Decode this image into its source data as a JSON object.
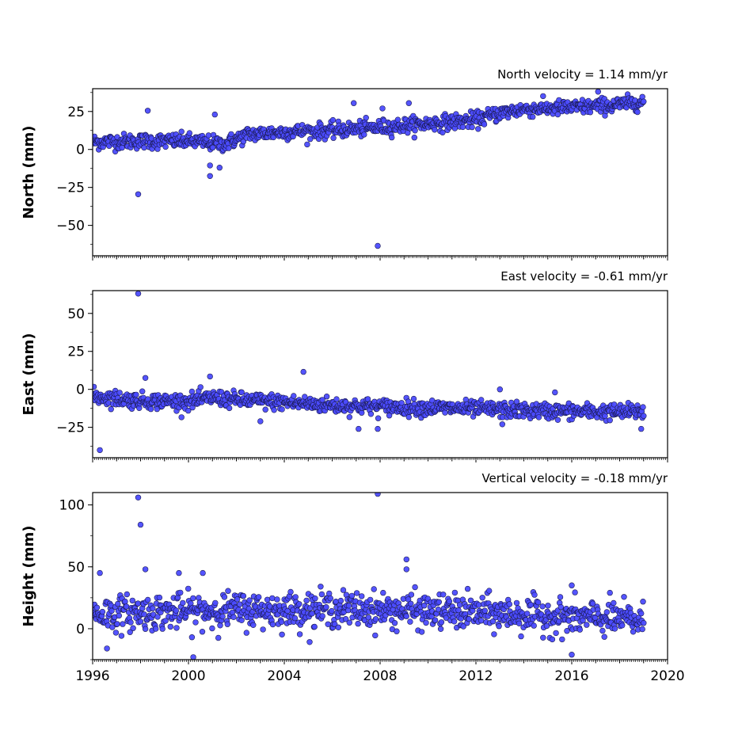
{
  "chart_data": [
    {
      "type": "scatter",
      "panel": "north",
      "ylabel": "North (mm)",
      "velocity_label": "North velocity = 1.14 mm/yr",
      "xlim": [
        1996,
        2020
      ],
      "ylim": [
        -70,
        40
      ],
      "yticks": [
        -50,
        -25,
        0,
        25
      ],
      "data_start": 1996.0,
      "data_end": 2019.0,
      "trend_points": [
        [
          1996.0,
          5.0
        ],
        [
          1998.0,
          5.5
        ],
        [
          2000.0,
          5.5
        ],
        [
          2001.5,
          3.5
        ],
        [
          2002.5,
          10.0
        ],
        [
          2004.0,
          11.5
        ],
        [
          2006.0,
          12.5
        ],
        [
          2008.0,
          14.5
        ],
        [
          2010.0,
          17.0
        ],
        [
          2012.0,
          19.5
        ],
        [
          2013.0,
          24.0
        ],
        [
          2014.0,
          26.5
        ],
        [
          2016.0,
          27.5
        ],
        [
          2018.0,
          29.5
        ],
        [
          2019.0,
          31.5
        ]
      ],
      "scatter_spread": 2.5,
      "outliers": [
        [
          1997.9,
          -29.5
        ],
        [
          1998.3,
          25.5
        ],
        [
          2000.9,
          -17.5
        ],
        [
          2000.9,
          -10.5
        ],
        [
          2001.1,
          23.0
        ],
        [
          2001.3,
          -12.0
        ],
        [
          2006.9,
          30.5
        ],
        [
          2007.9,
          -63.5
        ],
        [
          2008.1,
          27.0
        ],
        [
          2009.2,
          30.5
        ],
        [
          2017.1,
          38.0
        ]
      ]
    },
    {
      "type": "scatter",
      "panel": "east",
      "ylabel": "East (mm)",
      "velocity_label": "East velocity = -0.61 mm/yr",
      "xlim": [
        1996,
        2020
      ],
      "ylim": [
        -45,
        65
      ],
      "yticks": [
        -25,
        0,
        25,
        50
      ],
      "data_start": 1996.0,
      "data_end": 2019.0,
      "trend_points": [
        [
          1996.0,
          -4.5
        ],
        [
          1998.0,
          -7.5
        ],
        [
          2000.0,
          -8.0
        ],
        [
          2001.0,
          -5.5
        ],
        [
          2002.0,
          -7.0
        ],
        [
          2004.0,
          -8.5
        ],
        [
          2006.0,
          -10.5
        ],
        [
          2008.0,
          -11.5
        ],
        [
          2010.0,
          -12.0
        ],
        [
          2012.0,
          -13.0
        ],
        [
          2014.0,
          -14.0
        ],
        [
          2016.0,
          -14.5
        ],
        [
          2018.0,
          -15.0
        ],
        [
          2019.0,
          -14.5
        ]
      ],
      "scatter_spread": 2.6,
      "outliers": [
        [
          1996.3,
          -40.0
        ],
        [
          1997.9,
          63.0
        ],
        [
          1998.2,
          7.5
        ],
        [
          2000.9,
          8.5
        ],
        [
          2004.8,
          11.5
        ],
        [
          2003.0,
          -21.0
        ],
        [
          2007.1,
          -26.0
        ],
        [
          2007.9,
          -26.0
        ],
        [
          2013.1,
          -23.0
        ],
        [
          2013.0,
          0.0
        ],
        [
          2015.3,
          -2.0
        ],
        [
          2018.9,
          -26.0
        ]
      ]
    },
    {
      "type": "scatter",
      "panel": "height",
      "ylabel": "Height (mm)",
      "velocity_label": "Vertical velocity = -0.18 mm/yr",
      "xlim": [
        1996,
        2020
      ],
      "ylim": [
        -25,
        110
      ],
      "yticks": [
        0,
        50,
        100
      ],
      "xticks": [
        1996,
        2000,
        2004,
        2008,
        2012,
        2016,
        2020
      ],
      "data_start": 1996.0,
      "data_end": 2019.0,
      "trend_points": [
        [
          1996.0,
          12.0
        ],
        [
          1998.0,
          13.0
        ],
        [
          2000.0,
          14.0
        ],
        [
          2002.0,
          15.0
        ],
        [
          2004.0,
          15.0
        ],
        [
          2006.0,
          16.0
        ],
        [
          2008.0,
          15.0
        ],
        [
          2010.0,
          14.0
        ],
        [
          2012.0,
          13.0
        ],
        [
          2014.0,
          11.0
        ],
        [
          2016.0,
          9.0
        ],
        [
          2018.0,
          8.0
        ],
        [
          2019.0,
          6.0
        ]
      ],
      "scatter_spread": 7.0,
      "outliers": [
        [
          1996.3,
          45.0
        ],
        [
          1996.6,
          -16.0
        ],
        [
          1997.9,
          106.0
        ],
        [
          1998.0,
          84.0
        ],
        [
          1998.2,
          48.0
        ],
        [
          1999.6,
          45.0
        ],
        [
          2000.2,
          -23.0
        ],
        [
          2000.6,
          45.0
        ],
        [
          2007.9,
          109.0
        ],
        [
          2009.1,
          56.0
        ],
        [
          2009.1,
          48.0
        ],
        [
          2016.0,
          35.0
        ],
        [
          2016.0,
          -21.0
        ]
      ]
    }
  ]
}
